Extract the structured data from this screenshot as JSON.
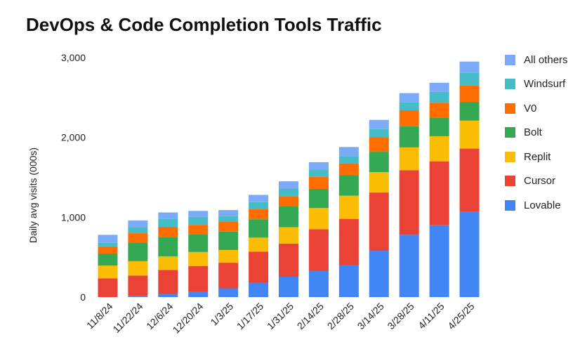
{
  "chart_data": {
    "type": "bar",
    "stacked": true,
    "title": "DevOps & Code Completion Tools Traffic",
    "ylabel": "Daily avg visits (000s)",
    "xlabel": "",
    "ylim": [
      0,
      3000
    ],
    "yticks": [
      "0",
      "1,000",
      "2,000",
      "3,000"
    ],
    "grid": false,
    "legend_position": "right",
    "categories": [
      "11/8/24",
      "11/22/24",
      "12/6/24",
      "12/20/24",
      "1/3/25",
      "1/17/25",
      "1/31/25",
      "2/14/25",
      "2/28/25",
      "3/14/25",
      "3/28/25",
      "4/11/25",
      "4/25/25"
    ],
    "series": [
      {
        "name": "Lovable",
        "color": "#4285f4",
        "values": [
          0,
          15,
          40,
          70,
          110,
          180,
          255,
          330,
          400,
          585,
          780,
          900,
          1070
        ]
      },
      {
        "name": "Cursor",
        "color": "#ea4335",
        "values": [
          235,
          255,
          300,
          320,
          320,
          390,
          415,
          520,
          580,
          725,
          810,
          800,
          790
        ]
      },
      {
        "name": "Replit",
        "color": "#fbbc04",
        "values": [
          160,
          180,
          170,
          175,
          160,
          175,
          205,
          265,
          290,
          255,
          285,
          315,
          350
        ]
      },
      {
        "name": "Bolt",
        "color": "#34a853",
        "values": [
          150,
          235,
          245,
          225,
          230,
          230,
          260,
          240,
          260,
          255,
          265,
          235,
          235
        ]
      },
      {
        "name": "V0",
        "color": "#ff6d01",
        "values": [
          90,
          115,
          125,
          115,
          125,
          130,
          130,
          150,
          145,
          185,
          200,
          185,
          210
        ]
      },
      {
        "name": "Windsurf",
        "color": "#46bdc6",
        "values": [
          45,
          75,
          100,
          100,
          70,
          85,
          90,
          95,
          90,
          100,
          100,
          135,
          155
        ]
      },
      {
        "name": "All others",
        "color": "#7baaf7",
        "values": [
          100,
          85,
          80,
          75,
          75,
          90,
          95,
          90,
          115,
          115,
          115,
          115,
          140
        ]
      }
    ]
  }
}
